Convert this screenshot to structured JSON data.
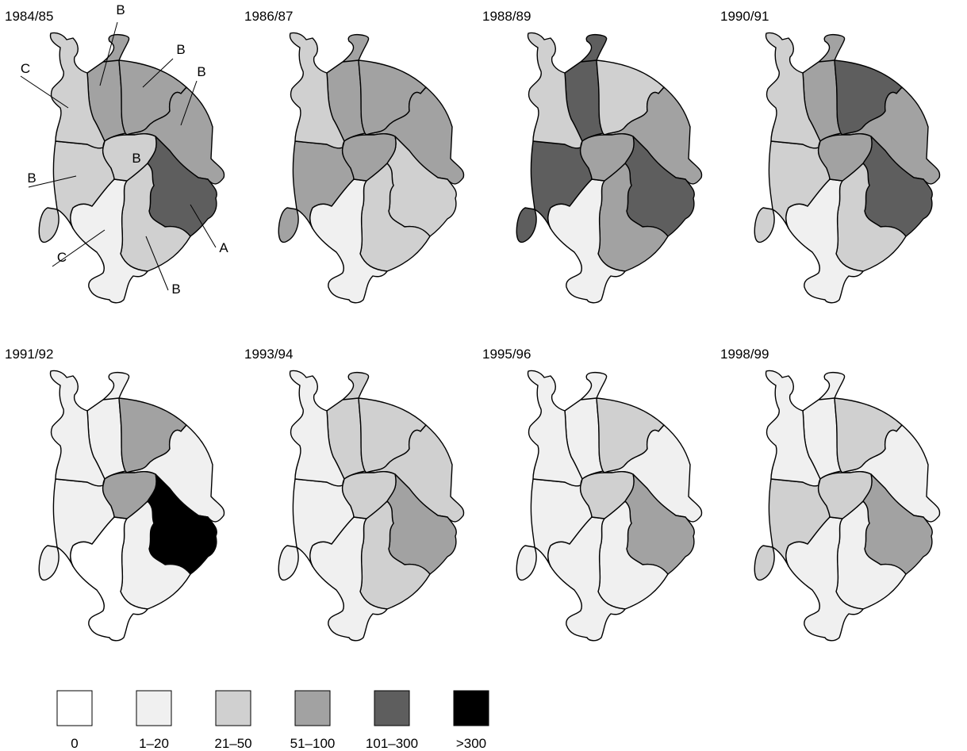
{
  "classes": [
    {
      "label": "0",
      "color": "#ffffff"
    },
    {
      "label": "1–20",
      "color": "#f0f0f0"
    },
    {
      "label": "21–50",
      "color": "#d0d0d0"
    },
    {
      "label": "51–100",
      "color": "#a2a2a2"
    },
    {
      "label": "101–300",
      "color": "#5e5e5e"
    },
    {
      "label": ">300",
      "color": "#000000"
    }
  ],
  "district_order": [
    "N",
    "NE",
    "E",
    "SE",
    "S",
    "SW",
    "W",
    "NW",
    "C"
  ],
  "callout_labels": {
    "N": "B",
    "NE": "B",
    "E": "B",
    "SE": "A",
    "S": "B",
    "SW": "C",
    "W": "B",
    "NW": "C",
    "C": "B"
  },
  "maps": [
    {
      "title": "1984/85",
      "classes": {
        "N": 3,
        "NE": 3,
        "E": 3,
        "SE": 4,
        "S": 2,
        "SW": 1,
        "W": 2,
        "NW": 2,
        "C": 2
      }
    },
    {
      "title": "1986/87",
      "classes": {
        "N": 3,
        "NE": 3,
        "E": 3,
        "SE": 2,
        "S": 2,
        "SW": 1,
        "W": 3,
        "NW": 2,
        "C": 3
      }
    },
    {
      "title": "1988/89",
      "classes": {
        "N": 4,
        "NE": 2,
        "E": 3,
        "SE": 4,
        "S": 3,
        "SW": 1,
        "W": 4,
        "NW": 2,
        "C": 3
      }
    },
    {
      "title": "1990/91",
      "classes": {
        "N": 3,
        "NE": 4,
        "E": 3,
        "SE": 4,
        "S": 2,
        "SW": 1,
        "W": 2,
        "NW": 2,
        "C": 3
      }
    },
    {
      "title": "1991/92",
      "classes": {
        "N": 1,
        "NE": 3,
        "E": 1,
        "SE": 5,
        "S": 1,
        "SW": 0,
        "W": 1,
        "NW": 1,
        "C": 3
      }
    },
    {
      "title": "1993/94",
      "classes": {
        "N": 2,
        "NE": 2,
        "E": 2,
        "SE": 3,
        "S": 2,
        "SW": 1,
        "W": 1,
        "NW": 1,
        "C": 2
      }
    },
    {
      "title": "1995/96",
      "classes": {
        "N": 1,
        "NE": 2,
        "E": 1,
        "SE": 3,
        "S": 1,
        "SW": 1,
        "W": 1,
        "NW": 1,
        "C": 2
      }
    },
    {
      "title": "1998/99",
      "classes": {
        "N": 1,
        "NE": 2,
        "E": 1,
        "SE": 3,
        "S": 1,
        "SW": 1,
        "W": 2,
        "NW": 1,
        "C": 2
      }
    }
  ]
}
